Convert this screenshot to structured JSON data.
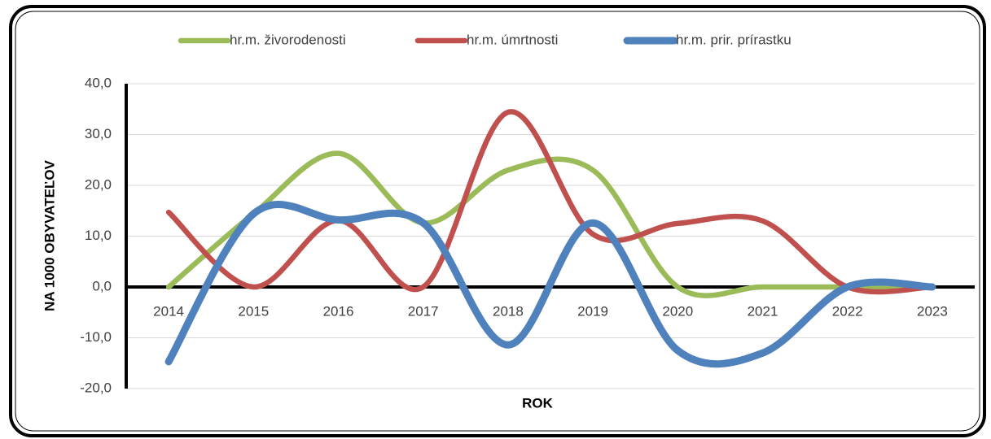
{
  "chart_data": {
    "type": "line",
    "smooth": true,
    "categories": [
      "2014",
      "2015",
      "2016",
      "2017",
      "2018",
      "2019",
      "2020",
      "2021",
      "2022",
      "2023"
    ],
    "series": [
      {
        "name": "hr.m. živorodenosti",
        "color": "#9bbb59",
        "values": [
          0,
          14.4,
          26.3,
          12.6,
          23.0,
          23.0,
          0,
          0,
          0,
          0
        ]
      },
      {
        "name": "hr.m. úmrtnosti",
        "color": "#c0504d",
        "values": [
          14.7,
          0,
          13.1,
          0,
          34.4,
          10.4,
          12.5,
          13.0,
          0,
          0
        ]
      },
      {
        "name": "hr.m. prir. prírastku",
        "color": "#4f81bd",
        "values": [
          -14.7,
          14.4,
          13.2,
          12.6,
          -11.4,
          12.6,
          -12.5,
          -13.0,
          0,
          0
        ]
      }
    ],
    "ylim": [
      -20,
      40
    ],
    "yticks": [
      {
        "value": -20,
        "label": "-20,0"
      },
      {
        "value": -10,
        "label": "-10,0"
      },
      {
        "value": 0,
        "label": "0,0"
      },
      {
        "value": 10,
        "label": "10,0"
      },
      {
        "value": 20,
        "label": "20,0"
      },
      {
        "value": 30,
        "label": "30,0"
      },
      {
        "value": 40,
        "label": "40,0"
      }
    ],
    "ylabel": "NA 1000 OBYVATEĽOV",
    "xlabel": "ROK",
    "grid": true,
    "legend": "top"
  }
}
